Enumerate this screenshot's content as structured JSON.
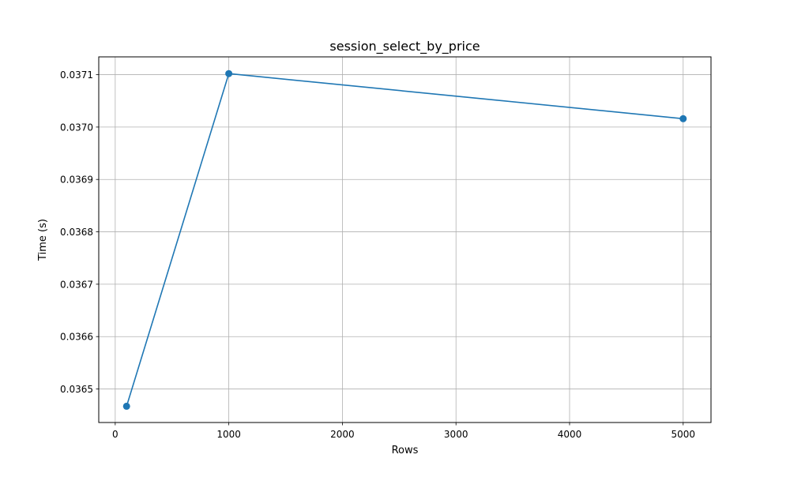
{
  "chart_data": {
    "type": "line",
    "title": "session_select_by_price",
    "xlabel": "Rows",
    "ylabel": "Time (s)",
    "x": [
      100,
      1000,
      5000
    ],
    "series": [
      {
        "values": [
          0.036467,
          0.037102,
          0.037016
        ],
        "color": "#1f77b4",
        "marker": "circle"
      }
    ],
    "xlim": [
      -145,
      5245
    ],
    "ylim": [
      0.036436,
      0.037134
    ],
    "xticks": [
      0,
      1000,
      2000,
      3000,
      4000,
      5000
    ],
    "xtick_labels": [
      "0",
      "1000",
      "2000",
      "3000",
      "4000",
      "5000"
    ],
    "yticks": [
      0.0365,
      0.0366,
      0.0367,
      0.0368,
      0.0369,
      0.037,
      0.0371
    ],
    "ytick_labels": [
      "0.0365",
      "0.0366",
      "0.0367",
      "0.0368",
      "0.0369",
      "0.0370",
      "0.0371"
    ],
    "grid": true,
    "legend": false
  }
}
